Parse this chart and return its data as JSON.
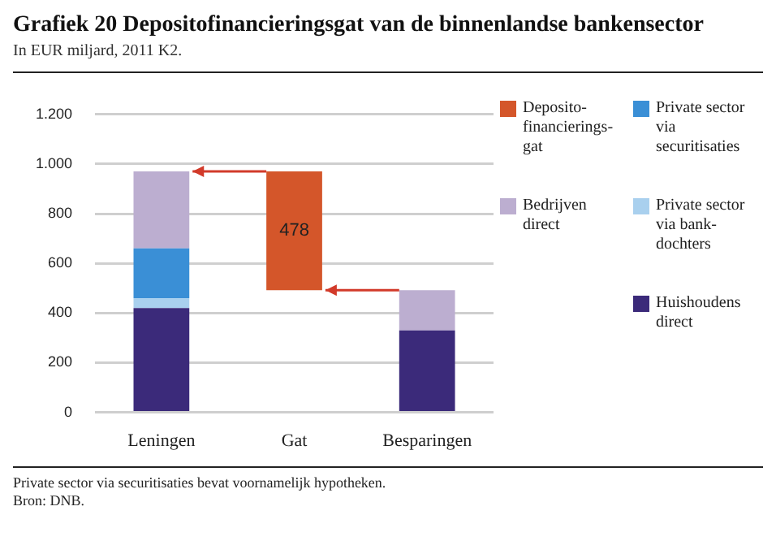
{
  "chart_data": {
    "type": "bar",
    "title": "Grafiek 20  Depositofinancieringsgat van de binnenlandse bankensector",
    "subtitle": "In EUR miljard, 2011 K2.",
    "categories": [
      "Leningen",
      "Gat",
      "Besparingen"
    ],
    "series": [
      {
        "name": "Huishoudens direct",
        "color": "#3b2a7a",
        "values": [
          420,
          null,
          330
        ]
      },
      {
        "name": "Private sector via bank-dochters",
        "color": "#a9d0ee",
        "values": [
          40,
          null,
          null
        ]
      },
      {
        "name": "Private sector via securitisaties",
        "color": "#3a8fd6",
        "values": [
          200,
          null,
          null
        ]
      },
      {
        "name": "Bedrijven direct",
        "color": "#bcaed0",
        "values": [
          310,
          null,
          162
        ]
      },
      {
        "name": "Deposito-financierings-gat",
        "color": "#d4562a",
        "values": [
          null,
          478,
          null
        ],
        "base": [
          null,
          492,
          null
        ],
        "value_labels": [
          null,
          "478",
          null
        ]
      }
    ],
    "stacked": true,
    "ylim": [
      0,
      1200
    ],
    "yticks": [
      0,
      200,
      400,
      600,
      800,
      {
        "value": 1000,
        "label": "1.000"
      },
      {
        "value": 1200,
        "label": "1.200"
      }
    ],
    "grid": "y",
    "legend": "right",
    "annotations": [
      "Private sector via securitisaties bevat voornamelijk hypotheken.",
      "Bron: DNB."
    ]
  }
}
